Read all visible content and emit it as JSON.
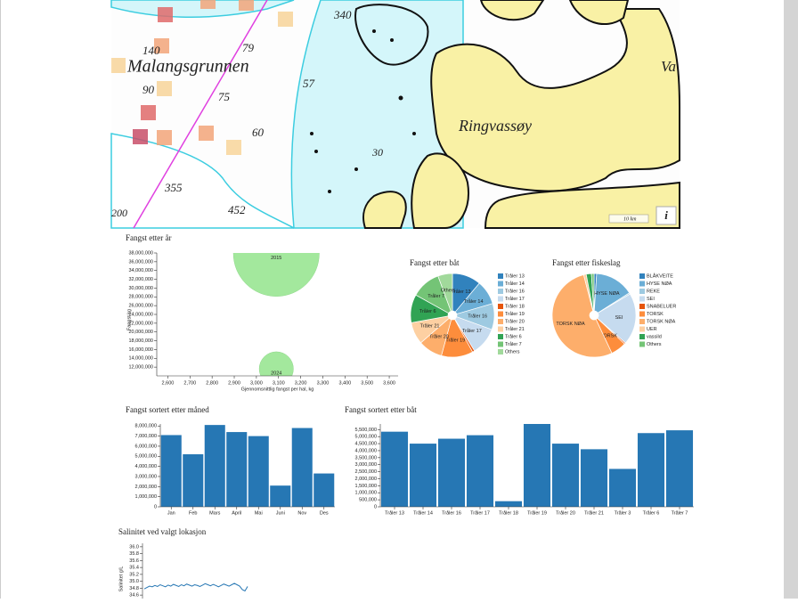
{
  "map": {
    "labels": [
      "Malangsgrunnen",
      "Ringvassøy",
      "340",
      "140",
      "79",
      "90",
      "75",
      "57",
      "60",
      "355",
      "452",
      "200",
      "30",
      "Va"
    ],
    "scale": "10 km",
    "info": "i"
  },
  "chart_data": [
    {
      "type": "scatter",
      "title": "Fangst etter år",
      "x_label": "Gjennomsnittlig fangst per hal, kg",
      "y_label": "Fangst kg",
      "x": [
        3090,
        3090
      ],
      "values": [
        37900000,
        11600000
      ],
      "sizes": [
        12000,
        1900
      ],
      "labels": [
        "2015",
        "2024"
      ],
      "color": "#a3e89d",
      "xlim": [
        2550,
        3640
      ],
      "ylim": [
        10000000,
        38000000
      ],
      "xticks": [
        {
          "value": 2600,
          "label": "2,600"
        },
        {
          "value": 2700,
          "label": "2,700"
        },
        {
          "value": 2800,
          "label": "2,800"
        },
        {
          "value": 2900,
          "label": "2,900"
        },
        {
          "value": 3000,
          "label": "3,000"
        },
        {
          "value": 3100,
          "label": "3,100"
        },
        {
          "value": 3200,
          "label": "3,200"
        },
        {
          "value": 3300,
          "label": "3,300"
        },
        {
          "value": 3400,
          "label": "3,400"
        },
        {
          "value": 3500,
          "label": "3,500"
        },
        {
          "value": 3600,
          "label": "3,600"
        }
      ],
      "yticks": [
        {
          "value": 12000000,
          "label": "12,000,000"
        },
        {
          "value": 14000000,
          "label": "14,000,000"
        },
        {
          "value": 16000000,
          "label": "16,000,000"
        },
        {
          "value": 18000000,
          "label": "18,000,000"
        },
        {
          "value": 20000000,
          "label": "20,000,000"
        },
        {
          "value": 22000000,
          "label": "22,000,000"
        },
        {
          "value": 24000000,
          "label": "24,000,000"
        },
        {
          "value": 26000000,
          "label": "26,000,000"
        },
        {
          "value": 28000000,
          "label": "28,000,000"
        },
        {
          "value": 30000000,
          "label": "30,000,000"
        },
        {
          "value": 32000000,
          "label": "32,000,000"
        },
        {
          "value": 34000000,
          "label": "34,000,000"
        },
        {
          "value": 36000000,
          "label": "36,000,000"
        },
        {
          "value": 38000000,
          "label": "38,000,000"
        }
      ]
    },
    {
      "type": "pie",
      "title": "Fangst etter båt",
      "categories": [
        "Tråler 13",
        "Tråler 14",
        "Tråler 16",
        "Tråler 17",
        "Tråler 18",
        "Tråler 19",
        "Tråler 20",
        "Tråler 21",
        "Tråler 6",
        "Tråler 7",
        "Others"
      ],
      "values": [
        5350000,
        4500000,
        4850000,
        5100000,
        400000,
        5900000,
        4500000,
        4100000,
        5250000,
        5450000,
        2700000
      ],
      "colors": [
        "#3182bd",
        "#6baed6",
        "#9ecae1",
        "#c6dbef",
        "#e6550d",
        "#fd8d3c",
        "#fdae6b",
        "#fdd0a2",
        "#31a354",
        "#74c476",
        "#a1d99b"
      ]
    },
    {
      "type": "pie",
      "title": "Fangst etter fiskeslag",
      "categories": [
        "BLÅKVEITE",
        "HYSE NØA",
        "REKE",
        "SEI",
        "SNABELUER",
        "TORSK",
        "TORSK NØA",
        "UER",
        "vassild",
        "Others"
      ],
      "values": [
        1,
        15,
        0.5,
        20,
        0.5,
        6,
        53,
        1,
        2,
        1
      ],
      "colors": [
        "#3182bd",
        "#6baed6",
        "#9ecae1",
        "#c6dbef",
        "#e6550d",
        "#fd8d3c",
        "#fdae6b",
        "#fdd0a2",
        "#31a354",
        "#74c476"
      ]
    },
    {
      "type": "bar",
      "title": "Fangst sortert etter måned",
      "categories": [
        "Jan",
        "Feb",
        "Mars",
        "April",
        "Mai",
        "Juni",
        "Nov",
        "Des"
      ],
      "values": [
        7100000,
        5200000,
        8100000,
        7400000,
        7000000,
        2100000,
        7800000,
        3300000
      ],
      "color": "#2677b4",
      "ylim": [
        0,
        8200000
      ],
      "yticks": [
        0,
        {
          "value": 1000000,
          "label": "1,000,000"
        },
        {
          "value": 2000000,
          "label": "2,000,000"
        },
        {
          "value": 3000000,
          "label": "3,000,000"
        },
        {
          "value": 4000000,
          "label": "4,000,000"
        },
        {
          "value": 5000000,
          "label": "5,000,000"
        },
        {
          "value": 6000000,
          "label": "6,000,000"
        },
        {
          "value": 7000000,
          "label": "7,000,000"
        },
        {
          "value": 8000000,
          "label": "8,000,000"
        }
      ]
    },
    {
      "type": "bar",
      "title": "Fangst sortert etter båt",
      "categories": [
        "Tråler 13",
        "Tråler 14",
        "Tråler 16",
        "Tråler 17",
        "Tråler 18",
        "Tråler 19",
        "Tråler 20",
        "Tråler 21",
        "Tråler 3",
        "Tråler 6",
        "Tråler 7"
      ],
      "values": [
        5350000,
        4500000,
        4850000,
        5100000,
        400000,
        5900000,
        4500000,
        4100000,
        2700000,
        5250000,
        5450000
      ],
      "color": "#2677b4",
      "ylim": [
        0,
        5900000
      ],
      "yticks": [
        0,
        {
          "value": 500000,
          "label": "500,000"
        },
        {
          "value": 1000000,
          "label": "1,000,000"
        },
        {
          "value": 1500000,
          "label": "1,500,000"
        },
        {
          "value": 2000000,
          "label": "2,000,000"
        },
        {
          "value": 2500000,
          "label": "2,500,000"
        },
        {
          "value": 3000000,
          "label": "3,000,000"
        },
        {
          "value": 3500000,
          "label": "3,500,000"
        },
        {
          "value": 4000000,
          "label": "4,000,000"
        },
        {
          "value": 4500000,
          "label": "4,500,000"
        },
        {
          "value": 5000000,
          "label": "5,000,000"
        },
        {
          "value": 5500000,
          "label": "5,500,000"
        }
      ]
    },
    {
      "type": "line",
      "title": "Salinitet ved valgt lokasjon",
      "y_label": "Salinitet g/L",
      "color": "#2677b4",
      "values": [
        34.78,
        34.82,
        34.86,
        34.84,
        34.88,
        34.85,
        34.9,
        34.87,
        34.84,
        34.89,
        34.86,
        34.91,
        34.88,
        34.85,
        34.9,
        34.87,
        34.92,
        34.89,
        34.86,
        34.9,
        34.88,
        34.85,
        34.89,
        34.93,
        34.9,
        34.87,
        34.91,
        34.88,
        34.84,
        34.88,
        34.92,
        34.89,
        34.86,
        34.9,
        34.94,
        34.9,
        34.86,
        34.76,
        34.72,
        34.85
      ],
      "ylim": [
        34.5,
        36.1
      ],
      "yticks": [
        34.6,
        34.8,
        {
          "value": 35,
          "label": "35.0"
        },
        35.2,
        35.4,
        35.6,
        35.8,
        {
          "value": 36,
          "label": "36.0"
        }
      ]
    }
  ]
}
